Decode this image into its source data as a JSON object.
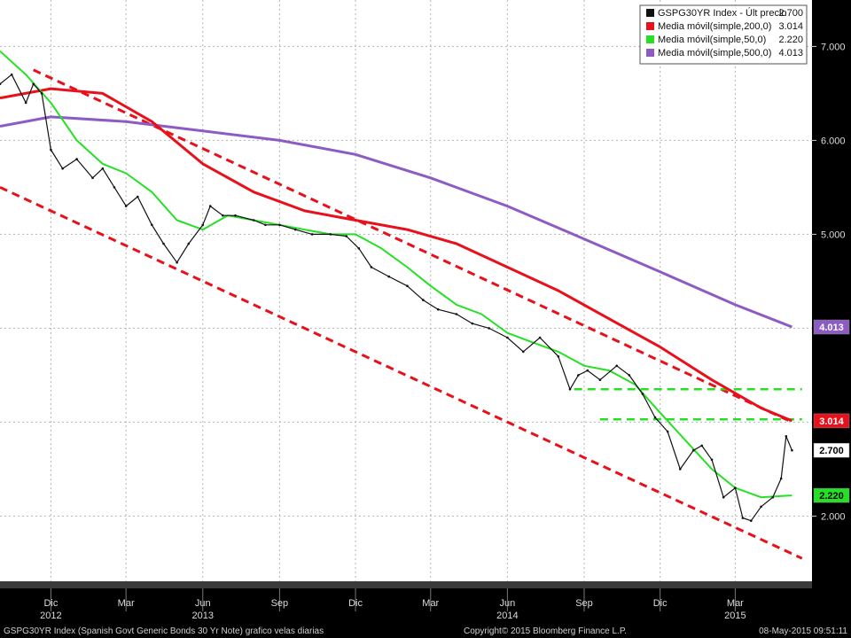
{
  "chart_data": {
    "type": "line",
    "subtype": "candlestick-daily",
    "title": "",
    "xlabel": "",
    "ylabel": "",
    "ylim": [
      1.4,
      7.4
    ],
    "grid": true,
    "legend_position": "top-right",
    "colors": {
      "background": "#ffffff",
      "price": "#111111",
      "ma200": "#e8101a",
      "ma50": "#25e025",
      "ma500": "#8c5cc4",
      "trend": "#e8101a",
      "support": "#25e025",
      "grid": "#b4b4b4"
    },
    "y_ticks": [
      "7.000",
      "6.000",
      "5.000",
      "2.000"
    ],
    "x_ticks": [
      "Dic",
      "Mar",
      "Jun",
      "Sep",
      "Dic",
      "Mar",
      "Jun",
      "Sep",
      "Dic",
      "Mar"
    ],
    "x_tick_dates": [
      "2012-12",
      "2013-03",
      "2013-06",
      "2013-09",
      "2013-12",
      "2014-03",
      "2014-06",
      "2014-09",
      "2014-12",
      "2015-03"
    ],
    "years": [
      "2012",
      "2013",
      "2014",
      "2015"
    ],
    "year_dates": [
      "2012-12",
      "2013-06",
      "2014-06",
      "2015-03"
    ],
    "legend": [
      {
        "name": "GSPG30YR Index - Últ precio",
        "value": "2.700",
        "color": "#111111"
      },
      {
        "name": "Media móvil(simple,200,0)",
        "value": "3.014",
        "color": "#e8101a"
      },
      {
        "name": "Media móvil(simple,50,0)",
        "value": "2.220",
        "color": "#25e025"
      },
      {
        "name": "Media móvil(simple,500,0)",
        "value": "4.013",
        "color": "#8c5cc4"
      }
    ],
    "last_value_labels": [
      {
        "label": "4.013",
        "value": 4.013,
        "bg": "#8c5cc4",
        "fg": "#ffffff"
      },
      {
        "label": "3.014",
        "value": 3.014,
        "bg": "#e8101a",
        "fg": "#ffffff"
      },
      {
        "label": "2.700",
        "value": 2.7,
        "bg": "#ffffff",
        "fg": "#000000"
      },
      {
        "label": "2.220",
        "value": 2.22,
        "bg": "#25e025",
        "fg": "#000000"
      }
    ],
    "series": [
      {
        "name": "GSPG30YR Index - Últ precio",
        "x": [
          "2012-10-01",
          "2012-10-15",
          "2012-11-01",
          "2012-11-10",
          "2012-11-20",
          "2012-12-01",
          "2012-12-15",
          "2013-01-01",
          "2013-01-20",
          "2013-02-01",
          "2013-02-15",
          "2013-03-01",
          "2013-03-15",
          "2013-04-01",
          "2013-04-15",
          "2013-05-01",
          "2013-05-15",
          "2013-06-01",
          "2013-06-10",
          "2013-06-25",
          "2013-07-10",
          "2013-08-01",
          "2013-08-15",
          "2013-09-01",
          "2013-09-20",
          "2013-10-10",
          "2013-11-01",
          "2013-11-20",
          "2013-12-05",
          "2013-12-20",
          "2014-01-10",
          "2014-02-01",
          "2014-02-20",
          "2014-03-10",
          "2014-04-01",
          "2014-04-20",
          "2014-05-10",
          "2014-06-01",
          "2014-06-20",
          "2014-07-10",
          "2014-08-01",
          "2014-08-15",
          "2014-08-25",
          "2014-09-05",
          "2014-09-20",
          "2014-10-10",
          "2014-10-25",
          "2014-11-10",
          "2014-11-25",
          "2014-12-10",
          "2014-12-25",
          "2015-01-10",
          "2015-01-20",
          "2015-02-01",
          "2015-02-15",
          "2015-03-01",
          "2015-03-10",
          "2015-03-20",
          "2015-04-01",
          "2015-04-15",
          "2015-04-25",
          "2015-05-01",
          "2015-05-08"
        ],
        "y": [
          6.6,
          6.7,
          6.4,
          6.6,
          6.5,
          5.9,
          5.7,
          5.8,
          5.6,
          5.7,
          5.5,
          5.3,
          5.4,
          5.1,
          4.9,
          4.7,
          4.9,
          5.1,
          5.3,
          5.2,
          5.2,
          5.15,
          5.1,
          5.1,
          5.05,
          5.0,
          5.0,
          4.98,
          4.85,
          4.65,
          4.55,
          4.45,
          4.3,
          4.2,
          4.15,
          4.05,
          4.0,
          3.9,
          3.75,
          3.9,
          3.7,
          3.35,
          3.5,
          3.55,
          3.45,
          3.6,
          3.5,
          3.3,
          3.05,
          2.9,
          2.5,
          2.7,
          2.75,
          2.6,
          2.2,
          2.3,
          1.98,
          1.95,
          2.1,
          2.2,
          2.4,
          2.85,
          2.7
        ]
      },
      {
        "name": "Media móvil(simple,200,0)",
        "x": [
          "2012-10-01",
          "2012-12-01",
          "2013-02-01",
          "2013-04-01",
          "2013-06-01",
          "2013-08-01",
          "2013-10-01",
          "2013-12-01",
          "2014-02-01",
          "2014-04-01",
          "2014-06-01",
          "2014-08-01",
          "2014-10-01",
          "2014-12-01",
          "2015-02-01",
          "2015-04-01",
          "2015-05-08"
        ],
        "y": [
          6.45,
          6.55,
          6.5,
          6.2,
          5.75,
          5.45,
          5.25,
          5.15,
          5.05,
          4.9,
          4.65,
          4.4,
          4.1,
          3.8,
          3.45,
          3.15,
          3.014
        ]
      },
      {
        "name": "Media móvil(simple,50,0)",
        "x": [
          "2012-10-01",
          "2012-11-01",
          "2012-12-01",
          "2013-01-01",
          "2013-02-01",
          "2013-03-01",
          "2013-04-01",
          "2013-05-01",
          "2013-06-01",
          "2013-07-01",
          "2013-08-01",
          "2013-09-01",
          "2013-10-01",
          "2013-11-01",
          "2013-12-01",
          "2014-01-01",
          "2014-02-01",
          "2014-03-01",
          "2014-04-01",
          "2014-05-01",
          "2014-06-01",
          "2014-07-01",
          "2014-08-01",
          "2014-09-01",
          "2014-10-01",
          "2014-11-01",
          "2014-12-01",
          "2015-01-01",
          "2015-02-01",
          "2015-03-01",
          "2015-04-01",
          "2015-05-08"
        ],
        "y": [
          6.95,
          6.7,
          6.4,
          6.0,
          5.75,
          5.65,
          5.45,
          5.15,
          5.05,
          5.2,
          5.15,
          5.1,
          5.05,
          5.0,
          5.0,
          4.85,
          4.65,
          4.45,
          4.25,
          4.15,
          3.95,
          3.85,
          3.75,
          3.6,
          3.55,
          3.4,
          3.1,
          2.8,
          2.5,
          2.3,
          2.2,
          2.22
        ]
      },
      {
        "name": "Media móvil(simple,500,0)",
        "x": [
          "2012-10-01",
          "2012-12-01",
          "2013-03-01",
          "2013-06-01",
          "2013-09-01",
          "2013-12-01",
          "2014-03-01",
          "2014-06-01",
          "2014-09-01",
          "2014-12-01",
          "2015-03-01",
          "2015-05-08"
        ],
        "y": [
          6.15,
          6.25,
          6.2,
          6.1,
          6.0,
          5.85,
          5.6,
          5.3,
          4.95,
          4.6,
          4.25,
          4.013
        ]
      }
    ],
    "trend_lines": [
      {
        "name": "upper-trend",
        "x": [
          "2012-11-10",
          "2015-05-08"
        ],
        "y": [
          6.75,
          3.0
        ],
        "style": "dashed",
        "color": "#e8101a"
      },
      {
        "name": "lower-trend",
        "x": [
          "2012-10-01",
          "2015-05-20"
        ],
        "y": [
          5.5,
          1.55
        ],
        "style": "dashed",
        "color": "#e8101a"
      },
      {
        "name": "support-1",
        "x": [
          "2014-08-20",
          "2015-05-20"
        ],
        "y": [
          3.35,
          3.35
        ],
        "style": "dashed",
        "color": "#25e025"
      },
      {
        "name": "support-2",
        "x": [
          "2014-09-20",
          "2015-05-20"
        ],
        "y": [
          3.03,
          3.03
        ],
        "style": "dashed",
        "color": "#25e025"
      }
    ]
  },
  "footer": {
    "left": "GSPG30YR Index (Spanish Govt Generic Bonds 30 Yr Note) grafico velas diarias",
    "center": "Copyright© 2015 Bloomberg Finance L.P.",
    "right": "08-May-2015 09:51:11"
  }
}
